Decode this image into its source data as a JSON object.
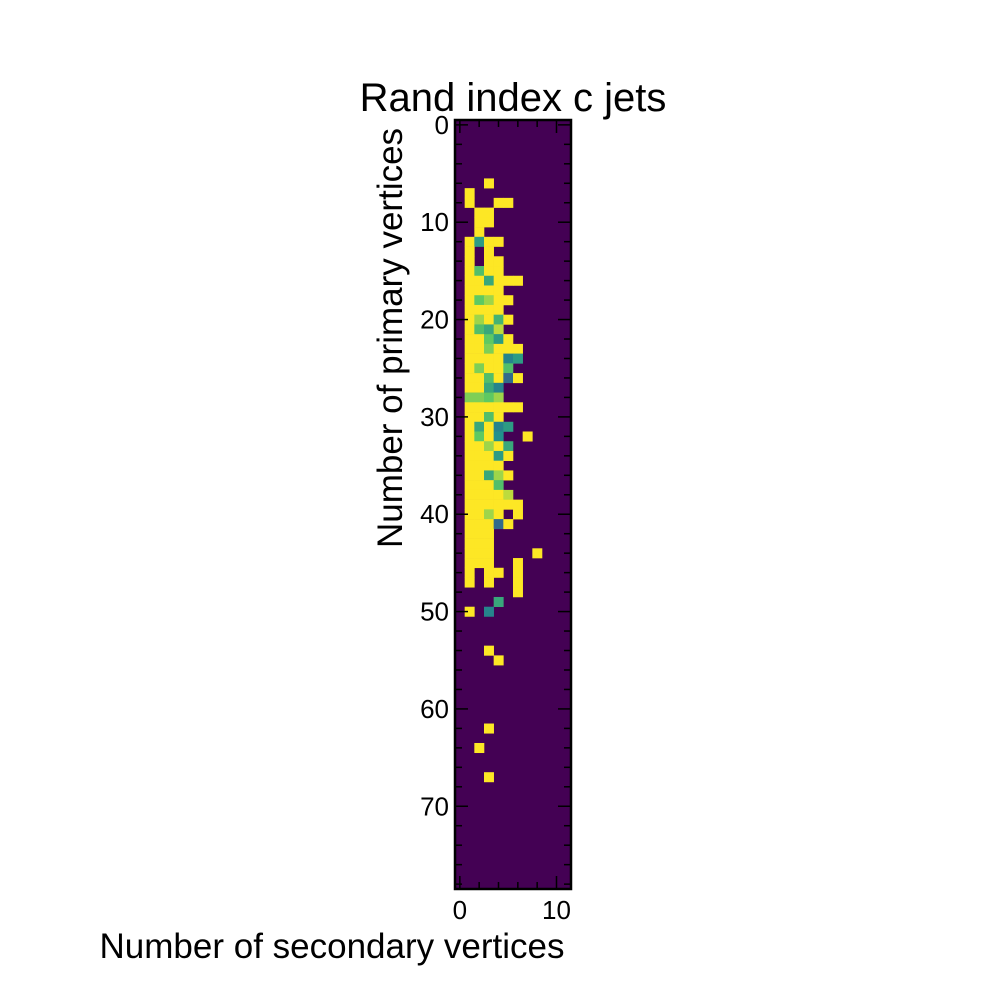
{
  "chart_data": {
    "type": "heatmap",
    "title": "Rand index c jets",
    "xlabel": "Number of secondary vertices",
    "ylabel": "Number of primary vertices",
    "xlim": [
      -0.5,
      11.5
    ],
    "ylim": [
      78.5,
      -0.5
    ],
    "xticks": [
      0,
      10
    ],
    "yticks": [
      0,
      10,
      20,
      30,
      40,
      50,
      60,
      70
    ],
    "colormap": "viridis",
    "value_range": [
      0,
      1
    ],
    "background_value": 0,
    "colors": {
      "low": "#440154",
      "high": "#fde725"
    },
    "cells": [
      [
        6,
        3,
        1.0
      ],
      [
        7,
        1,
        1.0
      ],
      [
        8,
        1,
        1.0
      ],
      [
        8,
        4,
        1.0
      ],
      [
        8,
        5,
        1.0
      ],
      [
        9,
        2,
        1.0
      ],
      [
        9,
        3,
        1.0
      ],
      [
        10,
        2,
        1.0
      ],
      [
        10,
        3,
        1.0
      ],
      [
        11,
        2,
        1.0
      ],
      [
        12,
        1,
        1.0
      ],
      [
        12,
        2,
        0.55
      ],
      [
        12,
        3,
        1.0
      ],
      [
        12,
        4,
        1.0
      ],
      [
        13,
        1,
        1.0
      ],
      [
        13,
        3,
        1.0
      ],
      [
        14,
        1,
        1.0
      ],
      [
        14,
        3,
        1.0
      ],
      [
        14,
        4,
        1.0
      ],
      [
        15,
        1,
        1.0
      ],
      [
        15,
        2,
        0.7
      ],
      [
        15,
        3,
        1.0
      ],
      [
        15,
        4,
        1.0
      ],
      [
        16,
        1,
        1.0
      ],
      [
        16,
        2,
        1.0
      ],
      [
        16,
        3,
        0.6
      ],
      [
        16,
        4,
        1.0
      ],
      [
        16,
        5,
        1.0
      ],
      [
        16,
        6,
        1.0
      ],
      [
        17,
        1,
        1.0
      ],
      [
        17,
        2,
        1.0
      ],
      [
        17,
        3,
        1.0
      ],
      [
        17,
        4,
        1.0
      ],
      [
        18,
        1,
        1.0
      ],
      [
        18,
        2,
        0.75
      ],
      [
        18,
        3,
        0.85
      ],
      [
        18,
        4,
        1.0
      ],
      [
        18,
        5,
        1.0
      ],
      [
        19,
        1,
        1.0
      ],
      [
        19,
        2,
        1.0
      ],
      [
        19,
        3,
        1.0
      ],
      [
        19,
        4,
        1.0
      ],
      [
        20,
        1,
        1.0
      ],
      [
        20,
        2,
        0.85
      ],
      [
        20,
        3,
        1.0
      ],
      [
        20,
        4,
        0.65
      ],
      [
        20,
        5,
        1.0
      ],
      [
        21,
        1,
        1.0
      ],
      [
        21,
        2,
        0.7
      ],
      [
        21,
        3,
        0.6
      ],
      [
        21,
        4,
        0.9
      ],
      [
        22,
        1,
        1.0
      ],
      [
        22,
        2,
        1.0
      ],
      [
        22,
        3,
        0.75
      ],
      [
        22,
        4,
        0.55
      ],
      [
        22,
        5,
        1.0
      ],
      [
        23,
        1,
        1.0
      ],
      [
        23,
        2,
        1.0
      ],
      [
        23,
        3,
        0.8
      ],
      [
        23,
        4,
        1.0
      ],
      [
        23,
        5,
        1.0
      ],
      [
        23,
        6,
        1.0
      ],
      [
        24,
        1,
        1.0
      ],
      [
        24,
        2,
        1.0
      ],
      [
        24,
        3,
        1.0
      ],
      [
        24,
        4,
        1.0
      ],
      [
        24,
        5,
        0.45
      ],
      [
        24,
        6,
        0.55
      ],
      [
        25,
        1,
        1.0
      ],
      [
        25,
        2,
        0.8
      ],
      [
        25,
        3,
        1.0
      ],
      [
        25,
        4,
        1.0
      ],
      [
        25,
        5,
        0.7
      ],
      [
        26,
        1,
        1.0
      ],
      [
        26,
        2,
        1.0
      ],
      [
        26,
        3,
        0.7
      ],
      [
        26,
        4,
        1.0
      ],
      [
        26,
        5,
        0.35
      ],
      [
        26,
        6,
        1.0
      ],
      [
        27,
        1,
        1.0
      ],
      [
        27,
        2,
        1.0
      ],
      [
        27,
        3,
        0.6
      ],
      [
        27,
        4,
        0.45
      ],
      [
        28,
        1,
        0.8
      ],
      [
        28,
        2,
        0.8
      ],
      [
        28,
        3,
        0.75
      ],
      [
        28,
        4,
        0.85
      ],
      [
        29,
        1,
        1.0
      ],
      [
        29,
        2,
        1.0
      ],
      [
        29,
        3,
        1.0
      ],
      [
        29,
        4,
        1.0
      ],
      [
        29,
        5,
        1.0
      ],
      [
        29,
        6,
        1.0
      ],
      [
        30,
        1,
        1.0
      ],
      [
        30,
        2,
        1.0
      ],
      [
        30,
        3,
        0.7
      ],
      [
        30,
        4,
        1.0
      ],
      [
        31,
        1,
        1.0
      ],
      [
        31,
        2,
        0.6
      ],
      [
        31,
        3,
        1.0
      ],
      [
        31,
        4,
        0.45
      ],
      [
        31,
        5,
        0.55
      ],
      [
        32,
        1,
        1.0
      ],
      [
        32,
        2,
        0.75
      ],
      [
        32,
        3,
        1.0
      ],
      [
        32,
        4,
        0.5
      ],
      [
        32,
        7,
        1.0
      ],
      [
        33,
        1,
        1.0
      ],
      [
        33,
        2,
        1.0
      ],
      [
        33,
        3,
        0.85
      ],
      [
        33,
        4,
        1.0
      ],
      [
        33,
        5,
        0.6
      ],
      [
        34,
        1,
        1.0
      ],
      [
        34,
        2,
        1.0
      ],
      [
        34,
        3,
        1.0
      ],
      [
        34,
        4,
        0.55
      ],
      [
        34,
        5,
        1.0
      ],
      [
        35,
        1,
        1.0
      ],
      [
        35,
        2,
        1.0
      ],
      [
        35,
        3,
        1.0
      ],
      [
        35,
        4,
        1.0
      ],
      [
        36,
        1,
        1.0
      ],
      [
        36,
        2,
        1.0
      ],
      [
        36,
        3,
        0.6
      ],
      [
        36,
        4,
        0.85
      ],
      [
        36,
        5,
        1.0
      ],
      [
        37,
        1,
        1.0
      ],
      [
        37,
        2,
        1.0
      ],
      [
        37,
        3,
        1.0
      ],
      [
        37,
        4,
        0.7
      ],
      [
        38,
        1,
        1.0
      ],
      [
        38,
        2,
        1.0
      ],
      [
        38,
        3,
        1.0
      ],
      [
        38,
        4,
        1.0
      ],
      [
        38,
        5,
        0.9
      ],
      [
        39,
        1,
        1.0
      ],
      [
        39,
        2,
        1.0
      ],
      [
        39,
        3,
        1.0
      ],
      [
        39,
        4,
        1.0
      ],
      [
        39,
        5,
        1.0
      ],
      [
        39,
        6,
        1.0
      ],
      [
        40,
        1,
        1.0
      ],
      [
        40,
        2,
        1.0
      ],
      [
        40,
        3,
        0.85
      ],
      [
        40,
        4,
        1.0
      ],
      [
        40,
        6,
        1.0
      ],
      [
        41,
        1,
        1.0
      ],
      [
        41,
        2,
        1.0
      ],
      [
        41,
        3,
        1.0
      ],
      [
        41,
        4,
        0.35
      ],
      [
        41,
        5,
        1.0
      ],
      [
        42,
        1,
        1.0
      ],
      [
        42,
        2,
        1.0
      ],
      [
        42,
        3,
        1.0
      ],
      [
        43,
        1,
        1.0
      ],
      [
        43,
        2,
        1.0
      ],
      [
        43,
        3,
        1.0
      ],
      [
        44,
        1,
        1.0
      ],
      [
        44,
        2,
        1.0
      ],
      [
        44,
        3,
        1.0
      ],
      [
        44,
        8,
        1.0
      ],
      [
        45,
        1,
        1.0
      ],
      [
        45,
        2,
        1.0
      ],
      [
        45,
        3,
        1.0
      ],
      [
        45,
        6,
        1.0
      ],
      [
        46,
        1,
        1.0
      ],
      [
        46,
        3,
        1.0
      ],
      [
        46,
        4,
        1.0
      ],
      [
        46,
        6,
        1.0
      ],
      [
        47,
        1,
        1.0
      ],
      [
        47,
        3,
        1.0
      ],
      [
        47,
        6,
        1.0
      ],
      [
        48,
        6,
        1.0
      ],
      [
        49,
        4,
        0.6
      ],
      [
        50,
        1,
        1.0
      ],
      [
        50,
        3,
        0.45
      ],
      [
        54,
        3,
        1.0
      ],
      [
        55,
        4,
        1.0
      ],
      [
        62,
        3,
        1.0
      ],
      [
        64,
        2,
        1.0
      ],
      [
        67,
        3,
        1.0
      ]
    ]
  }
}
